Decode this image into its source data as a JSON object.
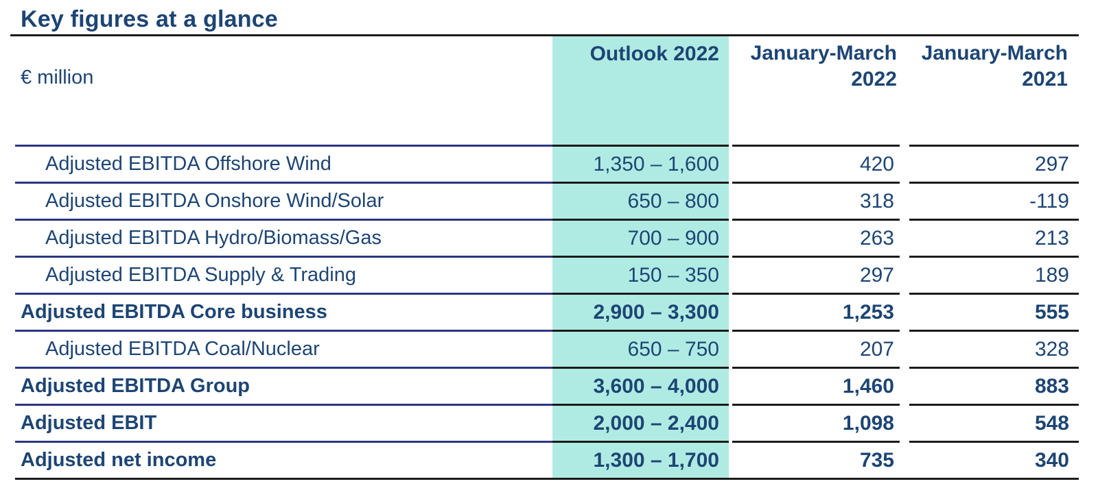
{
  "page": {
    "title": "Key figures at a glance",
    "unit_label": "€ million"
  },
  "table": {
    "columns": {
      "outlook": "Outlook 2022",
      "jan_mar_2022": "January-March 2022",
      "jan_mar_2021": "January-March 2021"
    },
    "rows": [
      {
        "label": "Adjusted EBITDA Offshore Wind",
        "outlook": "1,350 – 1,600",
        "jan_mar_2022": "420",
        "jan_mar_2021": "297",
        "emphasis": false,
        "indented": true
      },
      {
        "label": "Adjusted EBITDA Onshore Wind/Solar",
        "outlook": "650 – 800",
        "jan_mar_2022": "318",
        "jan_mar_2021": "-119",
        "emphasis": false,
        "indented": true
      },
      {
        "label": "Adjusted EBITDA Hydro/Biomass/Gas",
        "outlook": "700 – 900",
        "jan_mar_2022": "263",
        "jan_mar_2021": "213",
        "emphasis": false,
        "indented": true
      },
      {
        "label": "Adjusted EBITDA Supply & Trading",
        "outlook": "150 – 350",
        "jan_mar_2022": "297",
        "jan_mar_2021": "189",
        "emphasis": false,
        "indented": true
      },
      {
        "label": "Adjusted EBITDA Core business",
        "outlook": "2,900 – 3,300",
        "jan_mar_2022": "1,253",
        "jan_mar_2021": "555",
        "emphasis": true,
        "indented": false
      },
      {
        "label": "Adjusted EBITDA Coal/Nuclear",
        "outlook": "650 – 750",
        "jan_mar_2022": "207",
        "jan_mar_2021": "328",
        "emphasis": false,
        "indented": true
      },
      {
        "label": "Adjusted EBITDA Group",
        "outlook": "3,600 – 4,000",
        "jan_mar_2022": "1,460",
        "jan_mar_2021": "883",
        "emphasis": true,
        "indented": false
      },
      {
        "label": "Adjusted EBIT",
        "outlook": "2,000 – 2,400",
        "jan_mar_2022": "1,098",
        "jan_mar_2021": "548",
        "emphasis": true,
        "indented": false
      },
      {
        "label": "Adjusted net income",
        "outlook": "1,300 – 1,700",
        "jan_mar_2022": "735",
        "jan_mar_2021": "340",
        "emphasis": true,
        "indented": false
      }
    ]
  },
  "colors": {
    "accent_teal": "#b0ebe3",
    "text_navy": "#1d4574",
    "border_navy": "#2b3582",
    "border_black": "#1a1a1a"
  }
}
